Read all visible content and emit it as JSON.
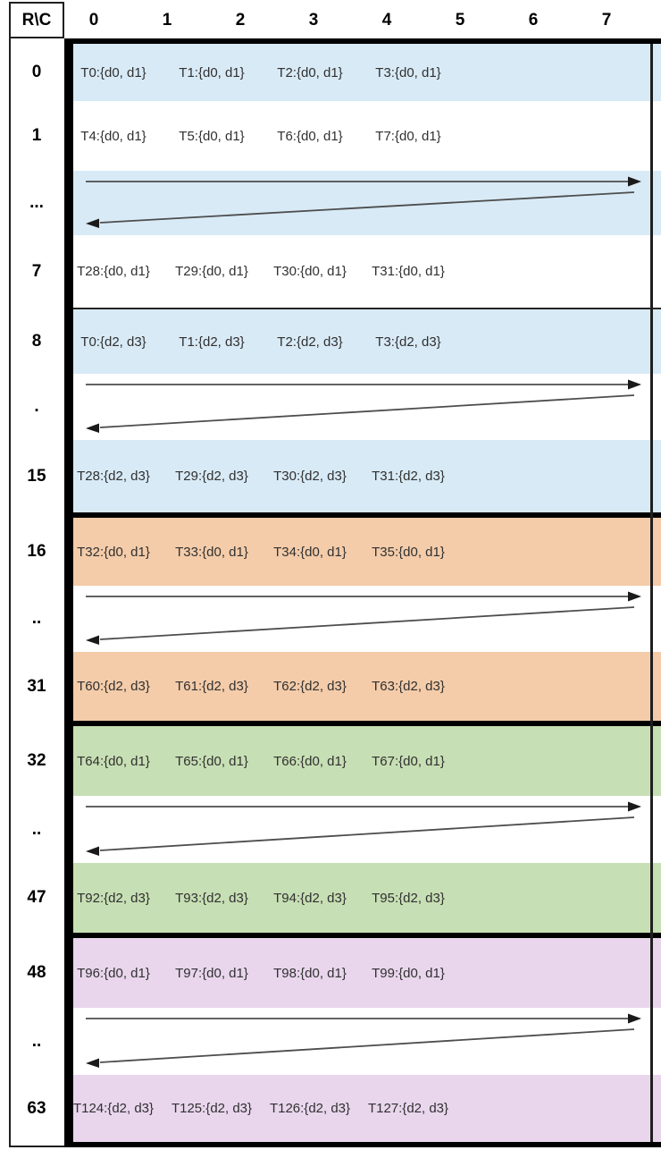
{
  "table": {
    "corner_label": "R\\C",
    "column_headers": [
      "0",
      "1",
      "2",
      "3",
      "4",
      "5",
      "6",
      "7"
    ],
    "colors": {
      "blue": "#d8eaf6",
      "orange": "#f4cca9",
      "green": "#c7dfb4",
      "purple": "#e9d6ed",
      "white": "#ffffff",
      "thick_border": "#000000",
      "thin_border": "#262626",
      "arrow_stroke": "#4d4d4d",
      "arrow_head": "#1a1a1a"
    },
    "sections": [
      {
        "name": "rows-0-15",
        "color_name": "blue",
        "rows": [
          {
            "type": "cells",
            "label": "0",
            "bg": "blue",
            "cells": [
              "T0:{d0, d1}",
              "T1:{d0, d1}",
              "T2:{d0, d1}",
              "T3:{d0, d1}"
            ]
          },
          {
            "type": "cells",
            "label": "1",
            "bg": "white",
            "cells": [
              "T4:{d0, d1}",
              "T5:{d0, d1}",
              "T6:{d0, d1}",
              "T7:{d0, d1}"
            ]
          },
          {
            "type": "arrows",
            "label": "...",
            "bg": "blue"
          },
          {
            "type": "cells",
            "label": "7",
            "bg": "white",
            "cells": [
              "T28:{d0, d1}",
              "T29:{d0, d1}",
              "T30:{d0, d1}",
              "T31:{d0, d1}"
            ]
          },
          {
            "type": "divider",
            "label": "",
            "bg": "white"
          },
          {
            "type": "cells",
            "label": "8",
            "bg": "blue",
            "cells": [
              "T0:{d2, d3}",
              "T1:{d2, d3}",
              "T2:{d2, d3}",
              "T3:{d2, d3}"
            ]
          },
          {
            "type": "arrows",
            "label": ".",
            "bg": "white"
          },
          {
            "type": "cells",
            "label": "15",
            "bg": "blue",
            "cells": [
              "T28:{d2, d3}",
              "T29:{d2, d3}",
              "T30:{d2, d3}",
              "T31:{d2, d3}"
            ]
          }
        ]
      },
      {
        "name": "rows-16-31",
        "color_name": "orange",
        "rows": [
          {
            "type": "cells",
            "label": "16",
            "bg": "orange",
            "cells": [
              "T32:{d0, d1}",
              "T33:{d0, d1}",
              "T34:{d0, d1}",
              "T35:{d0, d1}"
            ]
          },
          {
            "type": "arrows",
            "label": "..",
            "bg": "white"
          },
          {
            "type": "cells",
            "label": "31",
            "bg": "orange",
            "cells": [
              "T60:{d2, d3}",
              "T61:{d2, d3}",
              "T62:{d2, d3}",
              "T63:{d2, d3}"
            ]
          }
        ]
      },
      {
        "name": "rows-32-47",
        "color_name": "green",
        "rows": [
          {
            "type": "cells",
            "label": "32",
            "bg": "green",
            "cells": [
              "T64:{d0, d1}",
              "T65:{d0, d1}",
              "T66:{d0, d1}",
              "T67:{d0, d1}"
            ]
          },
          {
            "type": "arrows",
            "label": "..",
            "bg": "white"
          },
          {
            "type": "cells",
            "label": "47",
            "bg": "green",
            "cells": [
              "T92:{d2, d3}",
              "T93:{d2, d3}",
              "T94:{d2, d3}",
              "T95:{d2, d3}"
            ]
          }
        ]
      },
      {
        "name": "rows-48-63",
        "color_name": "purple",
        "rows": [
          {
            "type": "cells",
            "label": "48",
            "bg": "purple",
            "cells": [
              "T96:{d0, d1}",
              "T97:{d0, d1}",
              "T98:{d0, d1}",
              "T99:{d0, d1}"
            ]
          },
          {
            "type": "arrows",
            "label": "..",
            "bg": "white"
          },
          {
            "type": "cells",
            "label": "63",
            "bg": "purple",
            "cells": [
              "T124:{d2, d3}",
              "T125:{d2, d3}",
              "T126:{d2, d3}",
              "T127:{d2, d3}"
            ]
          }
        ]
      }
    ]
  }
}
